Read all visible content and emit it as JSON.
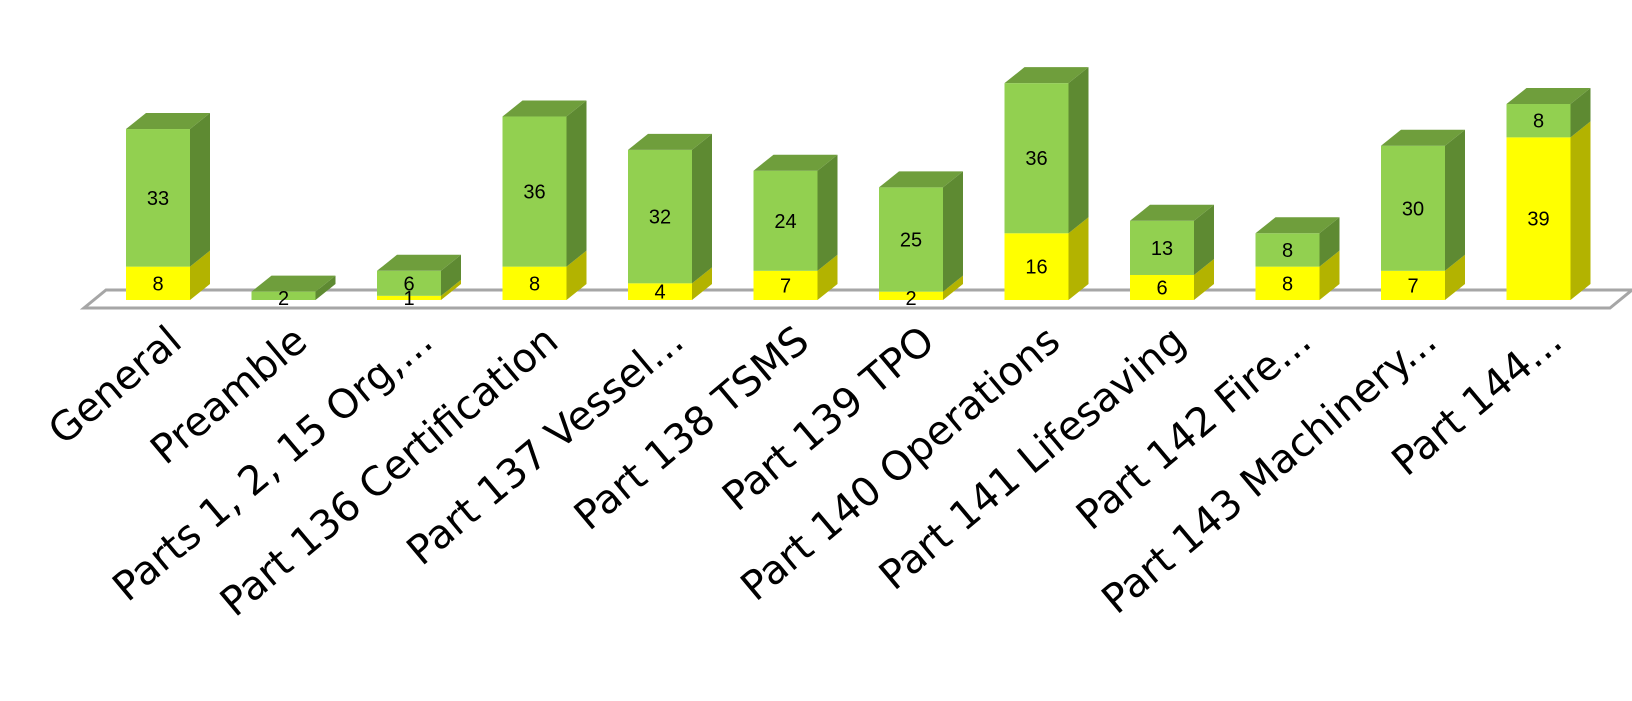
{
  "chart_data": {
    "type": "bar",
    "stacked": true,
    "three_d": true,
    "categories": [
      "General",
      "Preamble",
      "Parts 1, 2, 15 Org,...",
      "Part 136 Certification",
      "Part 137 Vessel...",
      "Part 138 TSMS",
      "Part 139 TPO",
      "Part 140 Operations",
      "Part 141 Lifesaving",
      "Part 142 Fire...",
      "Part 143 Machinery...",
      "Part 144..."
    ],
    "series": [
      {
        "values": [
          8,
          0,
          1,
          8,
          4,
          7,
          2,
          16,
          6,
          8,
          7,
          39
        ],
        "color": "#ffff00",
        "side": "#b3b300",
        "top": "#e6e600"
      },
      {
        "values": [
          33,
          2,
          6,
          36,
          32,
          24,
          25,
          36,
          13,
          8,
          30,
          8
        ],
        "color": "#92d050",
        "side": "#5e8a32",
        "top": "#6f9e3c"
      }
    ],
    "value_labels": [
      [
        "8",
        "",
        "1",
        "8",
        "4",
        "7",
        "2",
        "16",
        "6",
        "8",
        "7",
        "39"
      ],
      [
        "33",
        "2",
        "6",
        "36",
        "32",
        "24",
        "25",
        "36",
        "13",
        "8",
        "30",
        "8"
      ]
    ],
    "legend": "none",
    "grid": false
  }
}
